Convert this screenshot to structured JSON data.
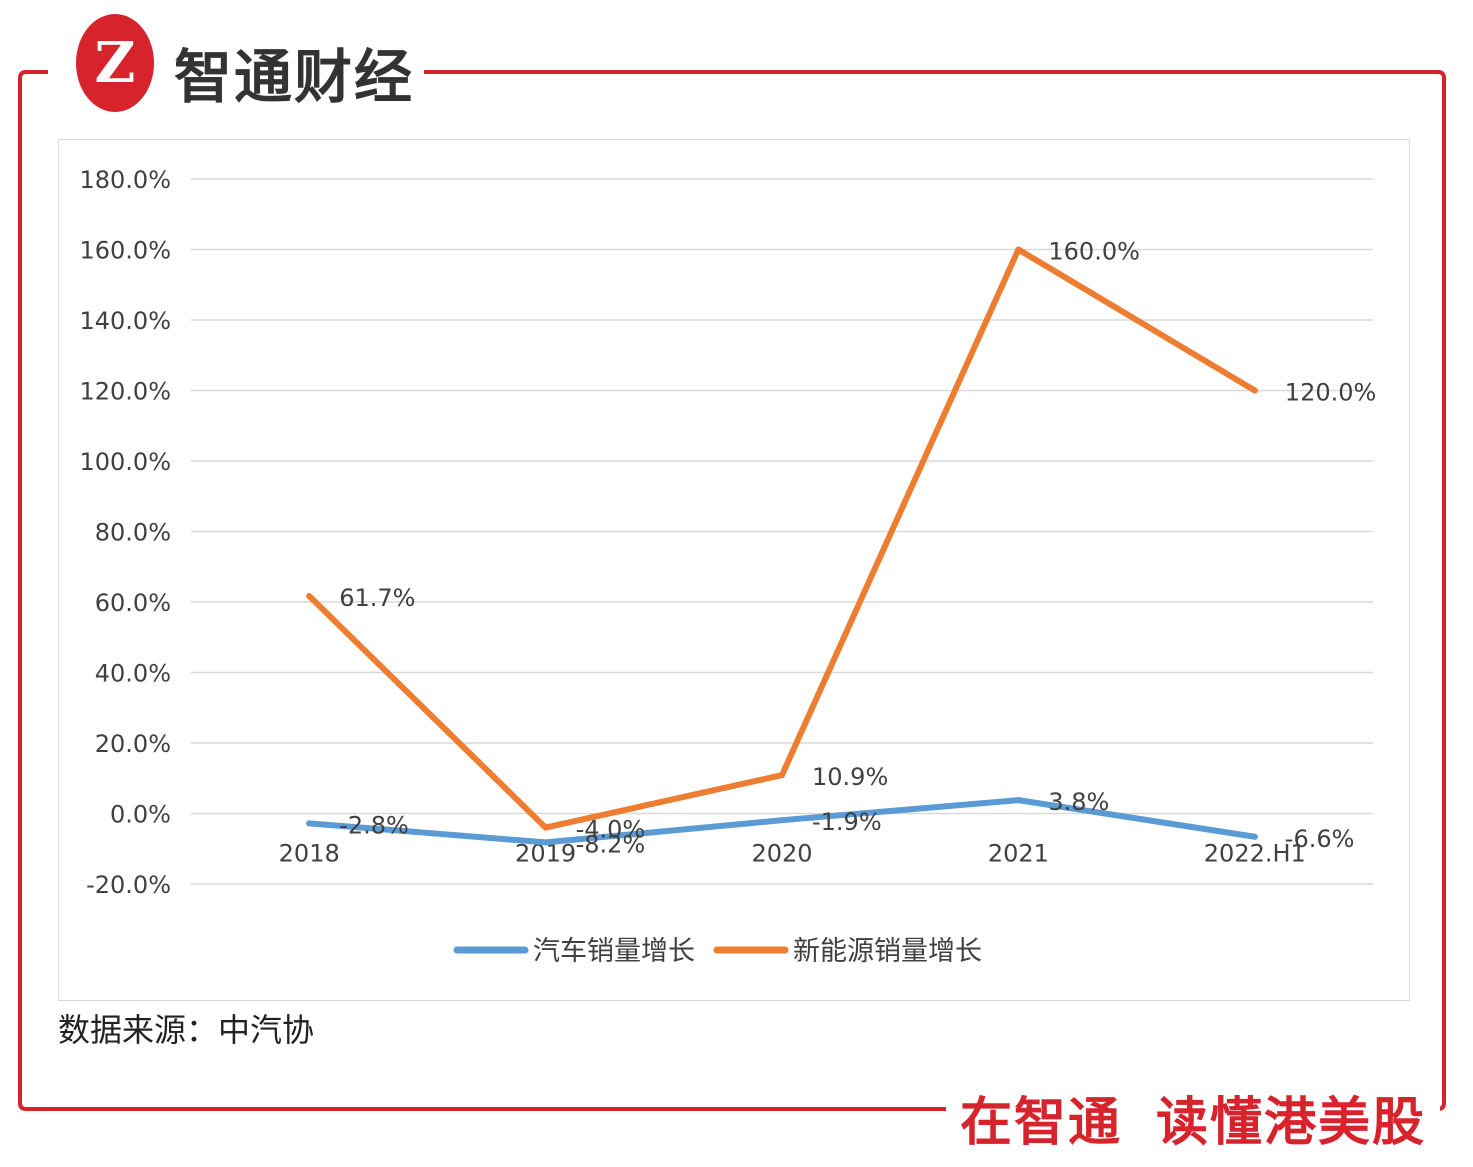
{
  "header": {
    "brand_name": "智通财经",
    "logo_glyph": "Z",
    "accent_color": "#d7232b"
  },
  "chart_data": {
    "type": "line",
    "categories": [
      "2018",
      "2019",
      "2020",
      "2021",
      "2022.H1"
    ],
    "series": [
      {
        "name": "汽车销量增长",
        "values": [
          -2.8,
          -8.2,
          -1.9,
          3.8,
          -6.6
        ],
        "labels": [
          "-2.8%",
          "-8.2%",
          "-1.9%",
          "3.8%",
          "-6.6%"
        ],
        "color": "#5b9bd5"
      },
      {
        "name": "新能源销量增长",
        "values": [
          61.7,
          -4.0,
          10.9,
          160.0,
          120.0
        ],
        "labels": [
          "61.7%",
          "-4.0%",
          "10.9%",
          "160.0%",
          "120.0%"
        ],
        "color": "#ed7d31"
      }
    ],
    "yticks": [
      "180.0%",
      "160.0%",
      "140.0%",
      "120.0%",
      "100.0%",
      "80.0%",
      "60.0%",
      "40.0%",
      "20.0%",
      "0.0%",
      "-20.0%"
    ],
    "ylim": [
      -20,
      180
    ],
    "grid": true,
    "legend_position": "bottom"
  },
  "footer": {
    "source": "数据来源：中汽协",
    "slogan_part1": "在智通",
    "slogan_part2": "读懂港美股"
  }
}
